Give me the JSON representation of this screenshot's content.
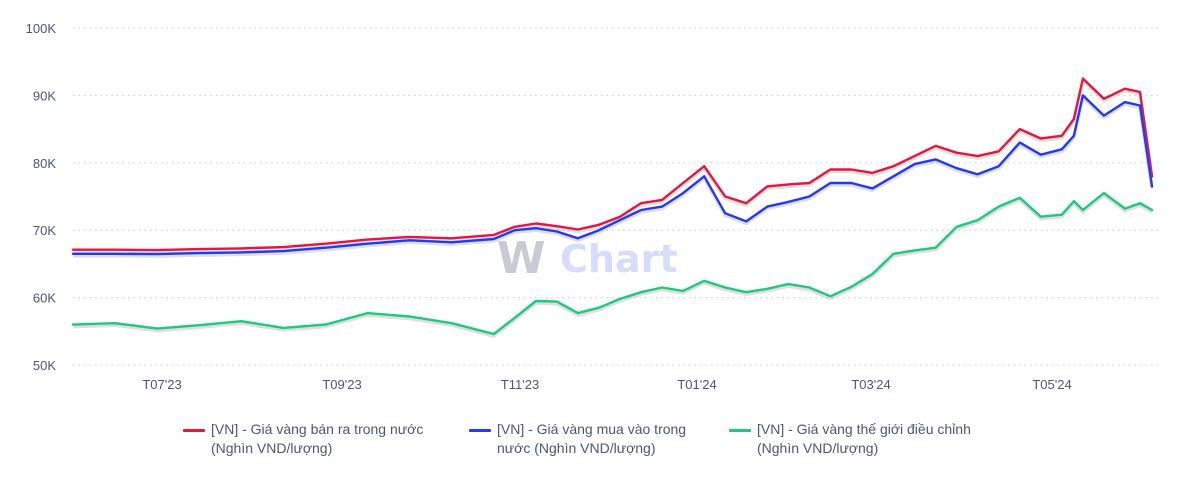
{
  "chart_data": {
    "type": "line",
    "title": "",
    "xlabel": "",
    "ylabel": "",
    "ylim": [
      50000,
      100000
    ],
    "y_ticks": [
      "50K",
      "60K",
      "70K",
      "80K",
      "90K",
      "100K"
    ],
    "x_ticks": [
      "T07'23",
      "T09'23",
      "T11'23",
      "T01'24",
      "T03'24",
      "T05'24"
    ],
    "grid": true,
    "legend_position": "bottom",
    "watermark": "WiChart",
    "x": [
      "2023-06-12",
      "2023-06-26",
      "2023-07-10",
      "2023-07-24",
      "2023-08-07",
      "2023-08-21",
      "2023-09-04",
      "2023-09-18",
      "2023-10-02",
      "2023-10-16",
      "2023-10-30",
      "2023-11-06",
      "2023-11-13",
      "2023-11-20",
      "2023-11-27",
      "2023-12-04",
      "2023-12-11",
      "2023-12-18",
      "2023-12-25",
      "2024-01-01",
      "2024-01-08",
      "2024-01-15",
      "2024-01-22",
      "2024-01-29",
      "2024-02-05",
      "2024-02-12",
      "2024-02-19",
      "2024-02-26",
      "2024-03-04",
      "2024-03-11",
      "2024-03-18",
      "2024-03-25",
      "2024-04-01",
      "2024-04-08",
      "2024-04-15",
      "2024-04-22",
      "2024-04-29",
      "2024-05-06",
      "2024-05-10",
      "2024-05-13",
      "2024-05-20",
      "2024-05-27",
      "2024-06-01",
      "2024-06-05"
    ],
    "series": [
      {
        "name": "[VN] - Giá vàng bán ra trong nước (Nghìn VND/lượng)",
        "color": "#e3173f",
        "values": [
          67100,
          67100,
          67050,
          67200,
          67300,
          67500,
          68000,
          68600,
          69000,
          68800,
          69300,
          70500,
          71000,
          70600,
          70100,
          70800,
          72000,
          74000,
          74500,
          77000,
          79500,
          75000,
          74000,
          76500,
          76800,
          77000,
          79000,
          79000,
          78500,
          79500,
          81000,
          82500,
          81500,
          81000,
          81700,
          85000,
          83600,
          84000,
          86500,
          92500,
          89500,
          91000,
          90500,
          78000
        ]
      },
      {
        "name": "[VN] - Giá vàng mua vào trong nước (Nghìn VND/lượng)",
        "color": "#2638f0",
        "values": [
          66500,
          66500,
          66450,
          66600,
          66700,
          66900,
          67400,
          68000,
          68500,
          68200,
          68700,
          70000,
          70300,
          69800,
          68800,
          70000,
          71500,
          73000,
          73500,
          75500,
          78000,
          72500,
          71300,
          73500,
          74200,
          75000,
          77000,
          77000,
          76200,
          78000,
          79800,
          80500,
          79200,
          78300,
          79500,
          83000,
          81200,
          82000,
          84000,
          90000,
          87000,
          89000,
          88500,
          76500
        ]
      },
      {
        "name": "[VN] - Giá vàng thế giới điều chỉnh (Nghìn VND/lượng)",
        "color": "#1dc97a",
        "values": [
          56000,
          56200,
          55400,
          55900,
          56500,
          55500,
          56000,
          57700,
          57200,
          56200,
          54600,
          57000,
          59500,
          59400,
          57700,
          58500,
          59800,
          60800,
          61500,
          61000,
          62500,
          61500,
          60800,
          61300,
          62000,
          61500,
          60200,
          61600,
          63500,
          66500,
          67000,
          67400,
          70500,
          71500,
          73500,
          74800,
          72000,
          72300,
          74300,
          73000,
          75500,
          73200,
          74000,
          73000
        ]
      }
    ]
  },
  "legend": {
    "items": [
      {
        "line1": "[VN] - Giá vàng bán ra trong nước",
        "line2": "(Nghìn VND/lượng)",
        "color": "#e3173f"
      },
      {
        "line1": "[VN] - Giá vàng mua vào trong",
        "line2": "nước (Nghìn VND/lượng)",
        "color": "#2638f0"
      },
      {
        "line1": "[VN] - Giá vàng thế giới điều chỉnh",
        "line2": "(Nghìn VND/lượng)",
        "color": "#1dc97a"
      }
    ]
  },
  "watermark": {
    "w": "W",
    "rest": "Chart"
  }
}
